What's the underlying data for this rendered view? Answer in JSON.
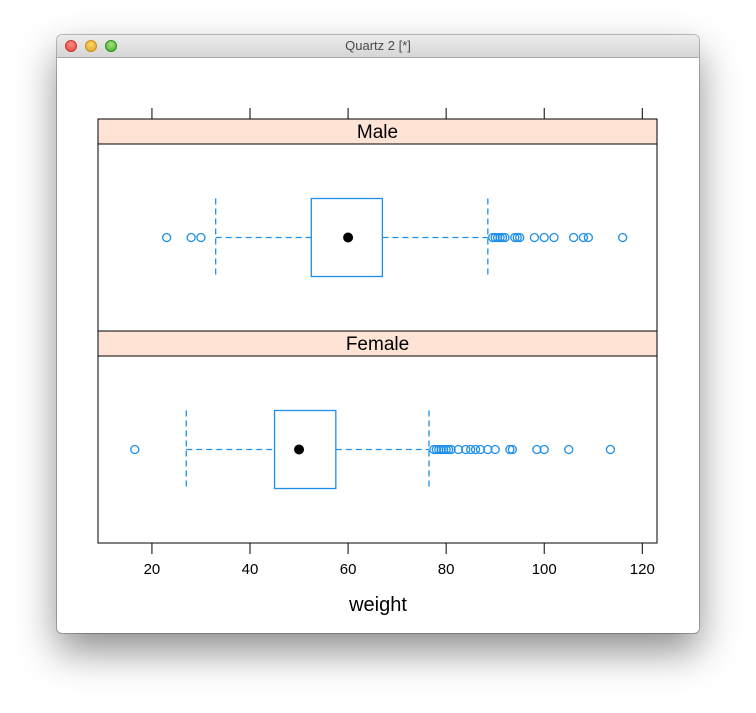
{
  "window": {
    "title": "Quartz 2 [*]",
    "buttons": [
      "close",
      "minimize",
      "zoom"
    ]
  },
  "chart_data": {
    "type": "boxplot",
    "xlabel": "weight",
    "xlim": [
      9,
      123
    ],
    "xticks": [
      20,
      40,
      60,
      80,
      100,
      120
    ],
    "tick_labels": [
      "20",
      "40",
      "60",
      "80",
      "100",
      "120"
    ],
    "strip_color": "#ffe4d6",
    "box_color": "#1e8fe8",
    "median_color": "#000000",
    "panels": [
      {
        "label": "Male",
        "whisker_low": 33,
        "q1": 52.5,
        "median": 60,
        "q3": 67,
        "whisker_high": 88.5,
        "outliers": [
          23,
          28,
          30,
          89.5,
          90,
          90.5,
          91,
          91.5,
          92,
          94,
          94.5,
          95,
          98,
          100,
          102,
          106,
          108,
          109,
          116
        ]
      },
      {
        "label": "Female",
        "whisker_low": 27,
        "q1": 45,
        "median": 50,
        "q3": 57.5,
        "whisker_high": 76.5,
        "outliers": [
          16.5,
          77.5,
          78,
          78.5,
          79,
          79.5,
          80,
          80.5,
          81,
          82.5,
          84,
          85,
          86,
          87,
          88.5,
          90,
          93,
          93.5,
          98.5,
          100,
          105,
          113.5
        ]
      }
    ]
  }
}
